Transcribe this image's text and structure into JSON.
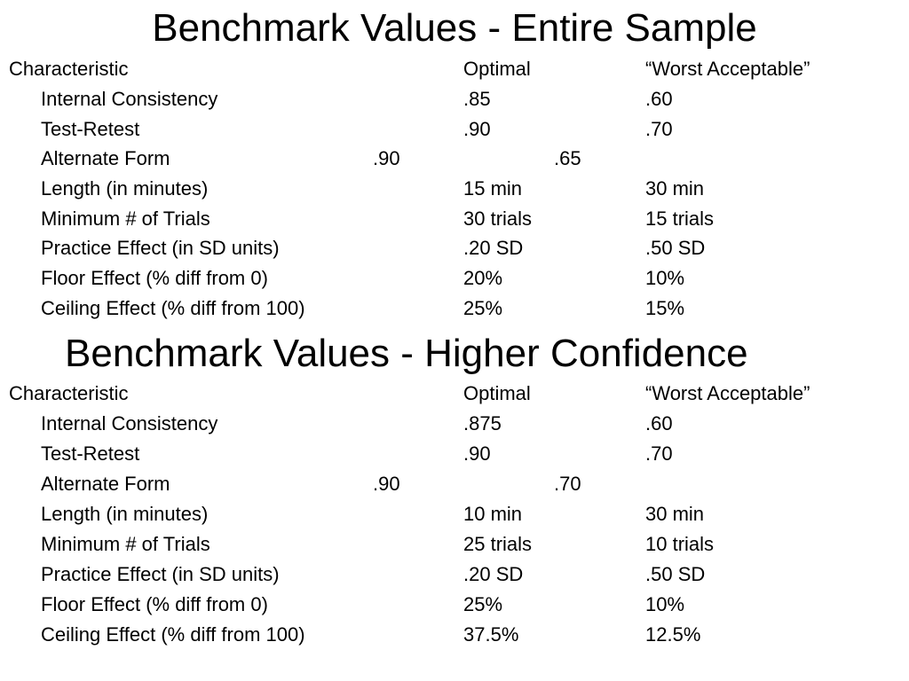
{
  "sections": [
    {
      "title": "Benchmark Values - Entire Sample",
      "header": {
        "characteristic": "Characteristic",
        "optimal": "Optimal",
        "worst": "“Worst Acceptable”"
      },
      "rows": [
        {
          "label": "Internal Consistency",
          "optimal": ".85",
          "worst": ".60"
        },
        {
          "label": "Test-Retest",
          "optimal": ".90",
          "worst": ".70"
        },
        {
          "label": "Alternate Form",
          "optimal": ".90",
          "worst": ".65"
        },
        {
          "label": "Length (in minutes)",
          "optimal": "15 min",
          "worst": "30 min"
        },
        {
          "label": "Minimum # of Trials",
          "optimal": "30 trials",
          "worst": "15 trials"
        },
        {
          "label": "Practice Effect (in SD units)",
          "optimal": ".20 SD",
          "worst": ".50 SD"
        },
        {
          "label": "Floor Effect (% diff from 0)",
          "optimal": "20%",
          "worst": "10%"
        },
        {
          "label": "Ceiling Effect (% diff from 100)",
          "optimal": "25%",
          "worst": "15%"
        }
      ]
    },
    {
      "title": "Benchmark Values - Higher Confidence",
      "header": {
        "characteristic": "Characteristic",
        "optimal": "Optimal",
        "worst": "“Worst Acceptable”"
      },
      "rows": [
        {
          "label": "Internal Consistency",
          "optimal": ".875",
          "worst": ".60"
        },
        {
          "label": "Test-Retest",
          "optimal": ".90",
          "worst": ".70"
        },
        {
          "label": "Alternate Form",
          "optimal": ".90",
          "worst": ".70"
        },
        {
          "label": "Length (in minutes)",
          "optimal": "10 min",
          "worst": "30 min"
        },
        {
          "label": "Minimum # of Trials",
          "optimal": "25 trials",
          "worst": "10 trials"
        },
        {
          "label": "Practice Effect (in SD units)",
          "optimal": ".20 SD",
          "worst": ".50 SD"
        },
        {
          "label": "Floor Effect (% diff from 0)",
          "optimal": "25%",
          "worst": "10%"
        },
        {
          "label": "Ceiling Effect (% diff from 100)",
          "optimal": "37.5%",
          "worst": "12.5%"
        }
      ]
    }
  ]
}
